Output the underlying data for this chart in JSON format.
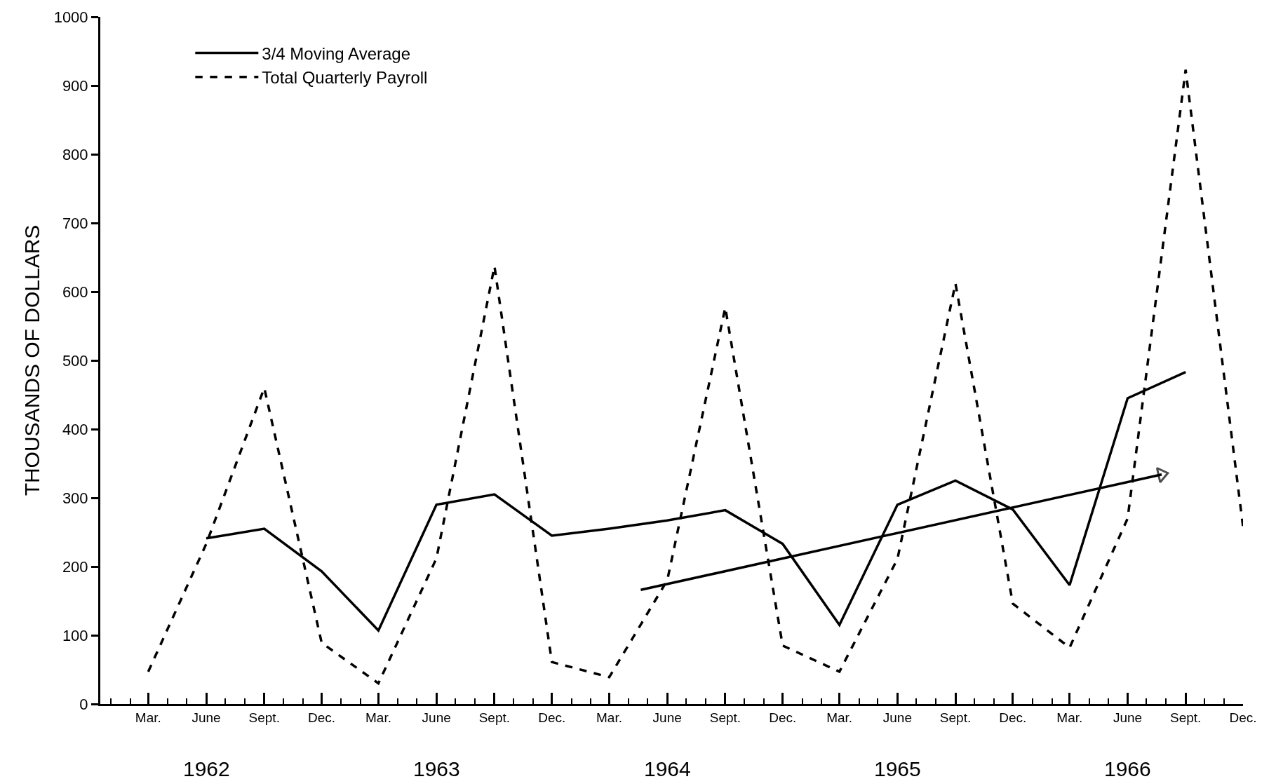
{
  "chart_data": {
    "type": "line",
    "ylabel": "THOUSANDS OF DOLLARS",
    "x": [
      "1962-03",
      "1962-06",
      "1962-09",
      "1962-12",
      "1963-03",
      "1963-06",
      "1963-09",
      "1963-12",
      "1964-03",
      "1964-06",
      "1964-09",
      "1964-12",
      "1965-03",
      "1965-06",
      "1965-09",
      "1965-12",
      "1966-03",
      "1966-06",
      "1966-09",
      "1966-12"
    ],
    "series": [
      {
        "name": "3/4 Moving Average",
        "color": "#000000",
        "line_style": "solid",
        "values": [
          null,
          241,
          255,
          193,
          107,
          290,
          305,
          245,
          255,
          267,
          282,
          233,
          115,
          290,
          325,
          283,
          173,
          445,
          483,
          null
        ]
      },
      {
        "name": "Total Quarterly Payroll",
        "color": "#000000",
        "line_style": "dashed",
        "values": [
          47,
          233,
          460,
          89,
          30,
          212,
          637,
          61,
          39,
          180,
          577,
          85,
          47,
          211,
          612,
          146,
          82,
          270,
          923,
          258
        ]
      },
      {
        "type": "line",
        "color": "#000000",
        "line_style": "solid",
        "marker": "triangle",
        "x": [
          "1964-04-20",
          "1966-07-25"
        ],
        "values": [
          166,
          334
        ]
      }
    ],
    "xlim": [
      "1961-12-15",
      "1966-12-01"
    ],
    "xticks": [
      {
        "value": "1962-03",
        "label": "Mar."
      },
      {
        "value": "1962-06",
        "label": "June"
      },
      {
        "value": "1962-09",
        "label": "Sept."
      },
      {
        "value": "1962-12",
        "label": "Dec."
      },
      {
        "value": "1963-03",
        "label": "Mar."
      },
      {
        "value": "1963-06",
        "label": "June"
      },
      {
        "value": "1963-09",
        "label": "Sept."
      },
      {
        "value": "1963-12",
        "label": "Dec."
      },
      {
        "value": "1964-03",
        "label": "Mar."
      },
      {
        "value": "1964-06",
        "label": "June"
      },
      {
        "value": "1964-09",
        "label": "Sept."
      },
      {
        "value": "1964-12",
        "label": "Dec."
      },
      {
        "value": "1965-03",
        "label": "Mar."
      },
      {
        "value": "1965-06",
        "label": "June"
      },
      {
        "value": "1965-09",
        "label": "Sept."
      },
      {
        "value": "1965-12",
        "label": "Dec."
      },
      {
        "value": "1966-03",
        "label": "Mar."
      },
      {
        "value": "1966-06",
        "label": "June"
      },
      {
        "value": "1966-09",
        "label": "Sept."
      },
      {
        "value": "1966-12",
        "label": "Dec."
      }
    ],
    "ylim": [
      0,
      1000
    ],
    "yticks": [
      0,
      100,
      200,
      300,
      400,
      500,
      600,
      700,
      800,
      900,
      1000
    ],
    "annotations": [
      "1962",
      "1963",
      "1964",
      "1965",
      "1966"
    ],
    "legend": "top left",
    "marker": "none"
  }
}
